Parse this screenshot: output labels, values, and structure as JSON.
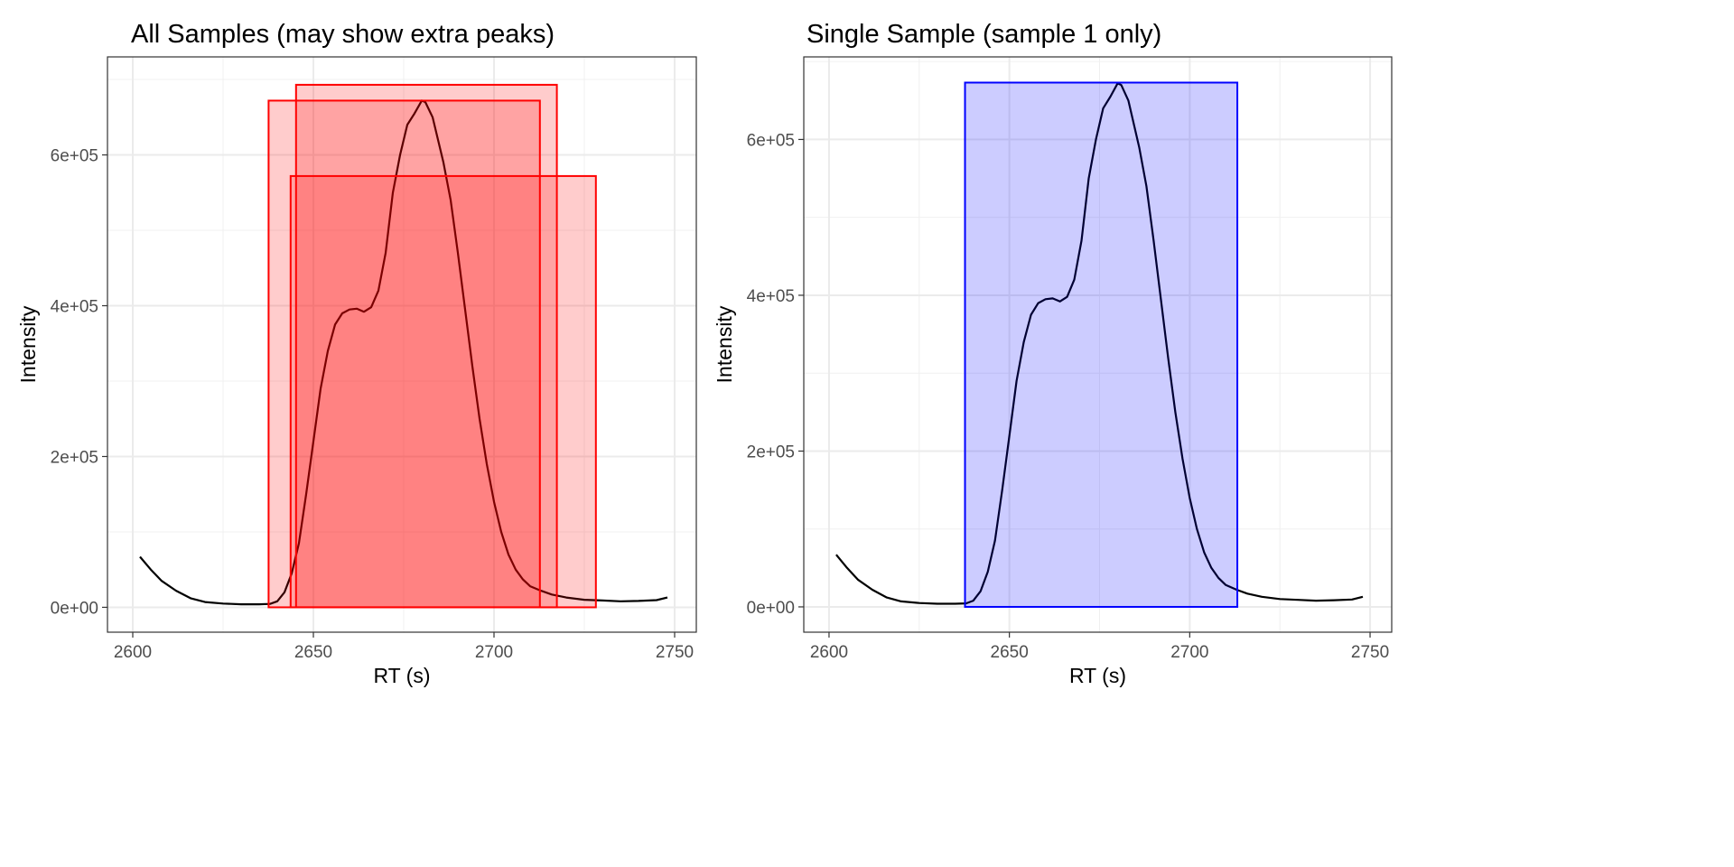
{
  "chart_data": [
    {
      "type": "line",
      "title": "All Samples (may show extra peaks)",
      "xlabel": "RT (s)",
      "ylabel": "Intensity",
      "xlim": [
        2593,
        2756
      ],
      "ylim": [
        -33000,
        730000
      ],
      "xticks": [
        2600,
        2650,
        2700,
        2750
      ],
      "xtick_labels": [
        "2600",
        "2650",
        "2700",
        "2750"
      ],
      "yticks": [
        0,
        200000,
        400000,
        600000
      ],
      "ytick_labels": [
        "0e+00",
        "2e+05",
        "4e+05",
        "6e+05"
      ],
      "grid": true,
      "line_color": "#000000",
      "rect_fill": "#FF0000",
      "rect_alpha": 0.2,
      "rect_stroke": "#FF0000",
      "rects": [
        {
          "xmin": 2637.6,
          "xmax": 2712.7,
          "ymin": 0,
          "ymax": 672000
        },
        {
          "xmin": 2645.2,
          "xmax": 2717.4,
          "ymin": 0,
          "ymax": 693000
        },
        {
          "xmin": 2643.7,
          "xmax": 2728.2,
          "ymin": 0,
          "ymax": 572000
        }
      ]
    },
    {
      "type": "line",
      "title": "Single Sample (sample 1 only)",
      "xlabel": "RT (s)",
      "ylabel": "Intensity",
      "xlim": [
        2593,
        2756
      ],
      "ylim": [
        -32500,
        706000
      ],
      "xticks": [
        2600,
        2650,
        2700,
        2750
      ],
      "xtick_labels": [
        "2600",
        "2650",
        "2700",
        "2750"
      ],
      "yticks": [
        0,
        200000,
        400000,
        600000
      ],
      "ytick_labels": [
        "0e+00",
        "2e+05",
        "4e+05",
        "6e+05"
      ],
      "grid": true,
      "line_color": "#000000",
      "rect_fill": "#0000FF",
      "rect_alpha": 0.2,
      "rect_stroke": "#0000FF",
      "rects": [
        {
          "xmin": 2637.7,
          "xmax": 2713.2,
          "ymin": 0,
          "ymax": 673000
        }
      ]
    }
  ],
  "curve": {
    "x": [
      2602,
      2605,
      2608,
      2612,
      2616,
      2620,
      2625,
      2630,
      2635,
      2638,
      2640,
      2642,
      2644,
      2646,
      2648,
      2650,
      2652,
      2654,
      2656,
      2658,
      2660,
      2662,
      2664,
      2666,
      2668,
      2670,
      2672,
      2674,
      2676,
      2678,
      2680,
      2681,
      2683,
      2686,
      2688,
      2690,
      2692,
      2694,
      2696,
      2698,
      2700,
      2702,
      2704,
      2706,
      2708,
      2710,
      2713,
      2716,
      2720,
      2725,
      2730,
      2735,
      2740,
      2745,
      2748
    ],
    "y": [
      67000,
      50000,
      35000,
      22000,
      12000,
      7000,
      5000,
      4000,
      4000,
      4500,
      8000,
      20000,
      45000,
      85000,
      150000,
      220000,
      290000,
      340000,
      375000,
      390000,
      395000,
      396000,
      392000,
      398000,
      420000,
      470000,
      550000,
      600000,
      640000,
      655000,
      672000,
      670000,
      650000,
      590000,
      540000,
      470000,
      395000,
      320000,
      250000,
      190000,
      140000,
      100000,
      70000,
      50000,
      37000,
      28000,
      22000,
      17000,
      13000,
      10000,
      9000,
      8000,
      8500,
      9500,
      13000
    ]
  }
}
